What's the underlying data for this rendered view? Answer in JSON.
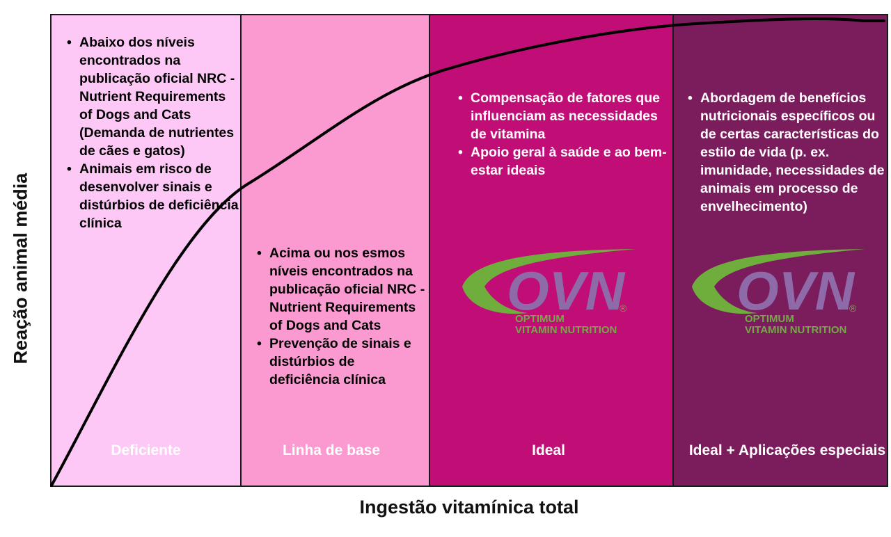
{
  "x_axis_label": "Ingestão vitamínica total",
  "y_axis_label": "Reação animal média",
  "zones": [
    {
      "label": "Deficiente",
      "bg": "#fdc8f5",
      "text_color": "#000000",
      "label_color": "#ffffff",
      "notes": [
        "Abaixo dos níveis encontrados na publicação oficial NRC -  Nutrient Requirements of Dogs and Cats (Demanda de nutrientes de cães e gatos)",
        "Animais em risco de desenvolver sinais e distúrbios de deficiência clínica"
      ]
    },
    {
      "label": "Linha de base",
      "bg": "#fb9ad0",
      "text_color": "#000000",
      "label_color": "#ffffff",
      "notes": [
        "Acima ou nos esmos níveis encontrados na publicação oficial NRC - Nutrient Requirements of Dogs and Cats",
        "Prevenção de sinais e distúrbios de deficiência clínica"
      ]
    },
    {
      "label": "Ideal",
      "bg": "#c10d76",
      "text_color": "#ffffff",
      "label_color": "#ffffff",
      "notes": [
        "Compensação de fatores que influenciam as necessidades de vitamina",
        "Apoio geral à saúde e ao bem-estar ideais"
      ]
    },
    {
      "label": "Ideal + Aplicações especiais",
      "bg": "#7b1c5c",
      "text_color": "#ffffff",
      "label_color": "#ffffff",
      "notes": [
        "Abordagem de benefícios nutricionais específicos ou de certas características do estilo de vida (p. ex. imunidade,  necessidades de animais em processo de envelhecimento)"
      ]
    }
  ],
  "logo": {
    "mark": "OVN",
    "registered": "®",
    "line1": "OPTIMUM",
    "line2": "VITAMIN NUTRITION",
    "swoosh_color": "#6fae3c",
    "mark_color": "#8e6aa8",
    "text_color": "#76a84a"
  },
  "curve_color": "#000000"
}
